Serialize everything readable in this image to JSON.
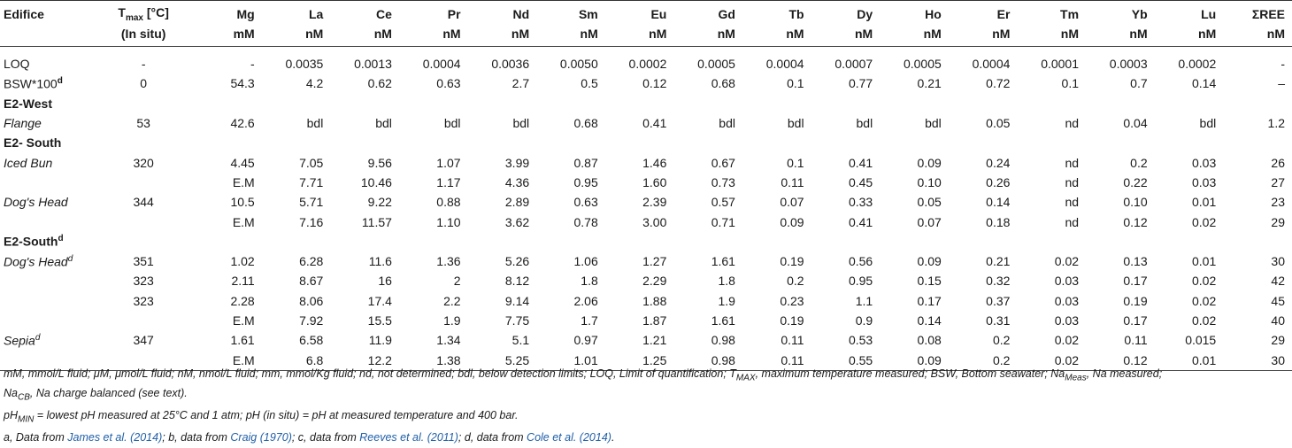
{
  "columns": {
    "edifice": "Edifice",
    "tmax_main": "T",
    "tmax_sub": "max",
    "tmax_unit": " [°C]",
    "tmax_line2": "(In situ)",
    "elements": [
      {
        "name": "Mg",
        "unit": "mM"
      },
      {
        "name": "La",
        "unit": "nM"
      },
      {
        "name": "Ce",
        "unit": "nM"
      },
      {
        "name": "Pr",
        "unit": "nM"
      },
      {
        "name": "Nd",
        "unit": "nM"
      },
      {
        "name": "Sm",
        "unit": "nM"
      },
      {
        "name": "Eu",
        "unit": "nM"
      },
      {
        "name": "Gd",
        "unit": "nM"
      },
      {
        "name": "Tb",
        "unit": "nM"
      },
      {
        "name": "Dy",
        "unit": "nM"
      },
      {
        "name": "Ho",
        "unit": "nM"
      },
      {
        "name": "Er",
        "unit": "nM"
      },
      {
        "name": "Tm",
        "unit": "nM"
      },
      {
        "name": "Yb",
        "unit": "nM"
      },
      {
        "name": "Lu",
        "unit": "nM"
      },
      {
        "name": "ΣREE",
        "unit": "nM"
      }
    ]
  },
  "rows": {
    "loq": {
      "label": "LOQ",
      "t": "-",
      "v": [
        "-",
        "0.0035",
        "0.0013",
        "0.0004",
        "0.0036",
        "0.0050",
        "0.0002",
        "0.0005",
        "0.0004",
        "0.0007",
        "0.0005",
        "0.0004",
        "0.0001",
        "0.0003",
        "0.0002",
        "-"
      ]
    },
    "bsw": {
      "label": "BSW*100",
      "sup": "d",
      "t": "0",
      "v": [
        "54.3",
        "4.2",
        "0.62",
        "0.63",
        "2.7",
        "0.5",
        "0.12",
        "0.68",
        "0.1",
        "0.77",
        "0.21",
        "0.72",
        "0.1",
        "0.7",
        "0.14",
        "–"
      ]
    },
    "g1": {
      "label": "E2-West"
    },
    "flange": {
      "label": "Flange",
      "t": "53",
      "v": [
        "42.6",
        "bdl",
        "bdl",
        "bdl",
        "bdl",
        "0.68",
        "0.41",
        "bdl",
        "bdl",
        "bdl",
        "bdl",
        "0.05",
        "nd",
        "0.04",
        "bdl",
        "1.2"
      ]
    },
    "g2": {
      "label": "E2- South"
    },
    "iced1": {
      "label": "Iced Bun",
      "t": "320",
      "v": [
        "4.45",
        "7.05",
        "9.56",
        "1.07",
        "3.99",
        "0.87",
        "1.46",
        "0.67",
        "0.1",
        "0.41",
        "0.09",
        "0.24",
        "nd",
        "0.2",
        "0.03",
        "26"
      ]
    },
    "iced2": {
      "label": "",
      "t": "",
      "v": [
        "E.M",
        "7.71",
        "10.46",
        "1.17",
        "4.36",
        "0.95",
        "1.60",
        "0.73",
        "0.11",
        "0.45",
        "0.10",
        "0.26",
        "nd",
        "0.22",
        "0.03",
        "27"
      ]
    },
    "dog1": {
      "label": "Dog's Head",
      "t": "344",
      "v": [
        "10.5",
        "5.71",
        "9.22",
        "0.88",
        "2.89",
        "0.63",
        "2.39",
        "0.57",
        "0.07",
        "0.33",
        "0.05",
        "0.14",
        "nd",
        "0.10",
        "0.01",
        "23"
      ]
    },
    "dog2": {
      "label": "",
      "t": "",
      "v": [
        "E.M",
        "7.16",
        "11.57",
        "1.10",
        "3.62",
        "0.78",
        "3.00",
        "0.71",
        "0.09",
        "0.41",
        "0.07",
        "0.18",
        "nd",
        "0.12",
        "0.02",
        "29"
      ]
    },
    "g3": {
      "label": "E2-South",
      "sup": "d"
    },
    "dogd1": {
      "label": "Dog's Head",
      "sup": "d",
      "t": "351",
      "v": [
        "1.02",
        "6.28",
        "11.6",
        "1.36",
        "5.26",
        "1.06",
        "1.27",
        "1.61",
        "0.19",
        "0.56",
        "0.09",
        "0.21",
        "0.02",
        "0.13",
        "0.01",
        "30"
      ]
    },
    "dogd2": {
      "label": "",
      "t": "323",
      "v": [
        "2.11",
        "8.67",
        "16",
        "2",
        "8.12",
        "1.8",
        "2.29",
        "1.8",
        "0.2",
        "0.95",
        "0.15",
        "0.32",
        "0.03",
        "0.17",
        "0.02",
        "42"
      ]
    },
    "dogd3": {
      "label": "",
      "t": "323",
      "v": [
        "2.28",
        "8.06",
        "17.4",
        "2.2",
        "9.14",
        "2.06",
        "1.88",
        "1.9",
        "0.23",
        "1.1",
        "0.17",
        "0.37",
        "0.03",
        "0.19",
        "0.02",
        "45"
      ]
    },
    "dogd4": {
      "label": "",
      "t": "",
      "v": [
        "E.M",
        "7.92",
        "15.5",
        "1.9",
        "7.75",
        "1.7",
        "1.87",
        "1.61",
        "0.19",
        "0.9",
        "0.14",
        "0.31",
        "0.03",
        "0.17",
        "0.02",
        "40"
      ]
    },
    "sepia1": {
      "label": "Sepia",
      "sup": "d",
      "t": "347",
      "v": [
        "1.61",
        "6.58",
        "11.9",
        "1.34",
        "5.1",
        "0.97",
        "1.21",
        "0.98",
        "0.11",
        "0.53",
        "0.08",
        "0.2",
        "0.02",
        "0.11",
        "0.015",
        "29"
      ]
    },
    "sepia2": {
      "label": "",
      "t": "",
      "v": [
        "E.M",
        "6.8",
        "12.2",
        "1.38",
        "5.25",
        "1.01",
        "1.25",
        "0.98",
        "0.11",
        "0.55",
        "0.09",
        "0.2",
        "0.02",
        "0.12",
        "0.01",
        "30"
      ]
    }
  },
  "notes": {
    "line1": "mM, mmol/L fluid; μM, μmol/L fluid; nM, nmol/L fluid; mm, mmol/Kg fluid; nd, not determined; bdl, below detection limits; LOQ, Limit of quantification; T",
    "line1_sub1": "MAX",
    "line1_b": ", maximum temperature measured; BSW, Bottom seawater; Na",
    "line1_sub2": "Meas",
    "line1_c": ", Na measured;",
    "line1_d": "Na",
    "line1_sub3": "CB",
    "line1_e": ", Na charge balanced (see text).",
    "line2": "pH",
    "line2_sub": "MIN",
    "line2_b": " = lowest pH measured at 25°C and 1 atm; pH (in situ) = pH at measured temperature and 400 bar.",
    "line3_a": "a, Data from ",
    "line3_ref1": "James et al. (2014)",
    "line3_b": "; b, data from ",
    "line3_ref2": "Craig (1970)",
    "line3_c": "; c, data from ",
    "line3_ref3": "Reeves et al. (2011)",
    "line3_d": "; d, data from ",
    "line3_ref4": "Cole et al. (2014)",
    "line3_e": "."
  },
  "colors": {
    "text": "#1a1a1a",
    "link": "#1f5fa8",
    "rule": "#4a4a4a"
  }
}
